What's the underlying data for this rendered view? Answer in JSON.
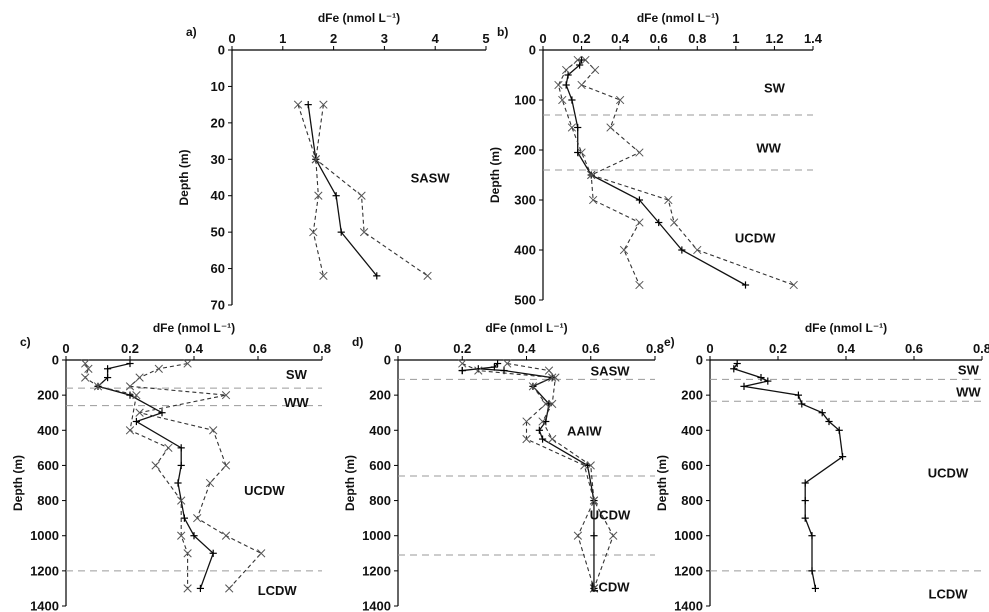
{
  "chart_data": [
    {
      "type": "line",
      "panel": "a)",
      "xlabel": "dFe (nmol L⁻¹)",
      "ylabel": "Depth (m)",
      "xlim": [
        0,
        5
      ],
      "ylim": [
        0,
        70
      ],
      "x_ticks": [
        "0",
        "1",
        "2",
        "3",
        "4",
        "5"
      ],
      "y_ticks": [
        "0",
        "10",
        "20",
        "30",
        "40",
        "50",
        "60",
        "70"
      ],
      "y_inverted": true,
      "series": [
        {
          "style": "mean",
          "x": [
            1.5,
            1.65,
            2.05,
            2.15,
            2.85
          ],
          "y": [
            15,
            30,
            40,
            50,
            62
          ]
        },
        {
          "style": "bound",
          "x": [
            1.3,
            1.65,
            2.55,
            2.6,
            3.85
          ],
          "y": [
            15,
            30,
            40,
            50,
            62
          ]
        },
        {
          "style": "bound",
          "x": [
            1.8,
            1.65,
            1.7,
            1.6,
            1.8
          ],
          "y": [
            15,
            30,
            40,
            50,
            62
          ]
        }
      ],
      "water_masses": [
        {
          "label": "SASW",
          "x": 3.9,
          "y": 35
        }
      ],
      "boundaries": []
    },
    {
      "type": "line",
      "panel": "b)",
      "xlabel": "dFe (nmol L⁻¹)",
      "ylabel": "Depth (m)",
      "xlim": [
        0,
        1.4
      ],
      "ylim": [
        0,
        500
      ],
      "x_ticks": [
        "0",
        "0.2",
        "0.4",
        "0.6",
        "0.8",
        "1",
        "1.2",
        "1.4"
      ],
      "y_ticks": [
        "0",
        "100",
        "200",
        "300",
        "400",
        "500"
      ],
      "y_inverted": true,
      "series": [
        {
          "style": "mean",
          "x": [
            0.2,
            0.19,
            0.13,
            0.12,
            0.15,
            0.18,
            0.18,
            0.25,
            0.5,
            0.6,
            0.72,
            1.05
          ],
          "y": [
            20,
            30,
            50,
            70,
            100,
            155,
            205,
            250,
            300,
            345,
            400,
            470
          ]
        },
        {
          "style": "bound",
          "x": [
            0.22,
            0.27,
            0.2,
            0.4,
            0.35,
            0.5,
            0.25,
            0.65,
            0.68,
            0.8,
            1.3
          ],
          "y": [
            20,
            40,
            70,
            100,
            155,
            205,
            250,
            300,
            345,
            400,
            470
          ]
        },
        {
          "style": "bound",
          "x": [
            0.18,
            0.12,
            0.08,
            0.1,
            0.15,
            0.2,
            0.25,
            0.26,
            0.5,
            0.42,
            0.5
          ],
          "y": [
            20,
            40,
            70,
            100,
            155,
            205,
            250,
            300,
            345,
            400,
            470
          ]
        }
      ],
      "water_masses": [
        {
          "label": "SW",
          "x": 1.2,
          "y": 75
        },
        {
          "label": "WW",
          "x": 1.17,
          "y": 195
        },
        {
          "label": "UCDW",
          "x": 1.1,
          "y": 375
        }
      ],
      "boundaries": [
        130,
        240
      ]
    },
    {
      "type": "line",
      "panel": "c)",
      "xlabel": "dFe (nmol L⁻¹)",
      "ylabel": "Depth (m)",
      "xlim": [
        0,
        0.8
      ],
      "ylim": [
        0,
        1400
      ],
      "x_ticks": [
        "0",
        "0.2",
        "0.4",
        "0.6",
        "0.8"
      ],
      "y_ticks": [
        "0",
        "200",
        "400",
        "600",
        "800",
        "1000",
        "1200",
        "1400"
      ],
      "y_inverted": true,
      "series": [
        {
          "style": "mean",
          "x": [
            0.2,
            0.13,
            0.13,
            0.1,
            0.2,
            0.3,
            0.22,
            0.36,
            0.36,
            0.35,
            0.37,
            0.4,
            0.46,
            0.42
          ],
          "y": [
            20,
            50,
            100,
            150,
            200,
            300,
            350,
            500,
            600,
            700,
            900,
            1000,
            1100,
            1300
          ]
        },
        {
          "style": "bound",
          "x": [
            0.38,
            0.29,
            0.23,
            0.2,
            0.5,
            0.23,
            0.46,
            0.5,
            0.45,
            0.41,
            0.5,
            0.61,
            0.51
          ],
          "y": [
            20,
            50,
            100,
            150,
            200,
            300,
            400,
            600,
            700,
            900,
            1000,
            1100,
            1300
          ]
        },
        {
          "style": "bound",
          "x": [
            0.06,
            0.07,
            0.06,
            0.1,
            0.22,
            0.2,
            0.32,
            0.28,
            0.36,
            0.36,
            0.38,
            0.38
          ],
          "y": [
            20,
            50,
            100,
            150,
            200,
            400,
            500,
            600,
            800,
            1000,
            1100,
            1300
          ]
        }
      ],
      "water_masses": [
        {
          "label": "SW",
          "x": 0.72,
          "y": 80
        },
        {
          "label": "WW",
          "x": 0.72,
          "y": 240
        },
        {
          "label": "UCDW",
          "x": 0.62,
          "y": 740
        },
        {
          "label": "LCDW",
          "x": 0.66,
          "y": 1310
        }
      ],
      "boundaries": [
        160,
        260,
        1200
      ]
    },
    {
      "type": "line",
      "panel": "d)",
      "xlabel": "dFe (nmol L⁻¹)",
      "ylabel": "Depth (m)",
      "xlim": [
        0,
        0.8
      ],
      "ylim": [
        0,
        1400
      ],
      "x_ticks": [
        "0",
        "0.2",
        "0.4",
        "0.6",
        "0.8"
      ],
      "y_ticks": [
        "0",
        "200",
        "400",
        "600",
        "800",
        "1000",
        "1200",
        "1400"
      ],
      "y_inverted": true,
      "series": [
        {
          "style": "mean",
          "x": [
            0.31,
            0.3,
            0.2,
            0.2,
            0.25,
            0.33,
            0.48,
            0.42,
            0.47,
            0.46,
            0.44,
            0.45,
            0.59,
            0.61,
            0.61,
            0.61
          ],
          "y": [
            20,
            40,
            60,
            60,
            50,
            60,
            100,
            150,
            250,
            350,
            400,
            450,
            600,
            800,
            1000,
            1300
          ]
        },
        {
          "style": "bound",
          "x": [
            0.34,
            0.47,
            0.49,
            0.48,
            0.45,
            0.48,
            0.6,
            0.61,
            0.67,
            0.61
          ],
          "y": [
            20,
            60,
            100,
            250,
            350,
            450,
            600,
            800,
            1000,
            1300
          ]
        },
        {
          "style": "bound",
          "x": [
            0.2,
            0.25,
            0.48,
            0.42,
            0.46,
            0.4,
            0.4,
            0.58,
            0.61,
            0.56,
            0.61
          ],
          "y": [
            20,
            60,
            100,
            150,
            250,
            350,
            450,
            600,
            800,
            1000,
            1300
          ]
        }
      ],
      "water_masses": [
        {
          "label": "SASW",
          "x": 0.66,
          "y": 60
        },
        {
          "label": "AAIW",
          "x": 0.58,
          "y": 400
        },
        {
          "label": "UCDW",
          "x": 0.66,
          "y": 880
        },
        {
          "label": "LCDW",
          "x": 0.66,
          "y": 1290
        }
      ],
      "boundaries": [
        110,
        660,
        1110
      ]
    },
    {
      "type": "line",
      "panel": "e)",
      "xlabel": "dFe (nmol L⁻¹)",
      "ylabel": "Depth (m)",
      "xlim": [
        0,
        0.8
      ],
      "ylim": [
        0,
        1400
      ],
      "x_ticks": [
        "0",
        "0.2",
        "0.4",
        "0.6",
        "0.8"
      ],
      "y_ticks": [
        "0",
        "200",
        "400",
        "600",
        "800",
        "1000",
        "1200",
        "1400"
      ],
      "y_inverted": true,
      "series": [
        {
          "style": "mean",
          "x": [
            0.08,
            0.07,
            0.15,
            0.17,
            0.1,
            0.26,
            0.27,
            0.33,
            0.35,
            0.38,
            0.39,
            0.28,
            0.28,
            0.28,
            0.3,
            0.3,
            0.31
          ],
          "y": [
            20,
            50,
            100,
            120,
            150,
            200,
            250,
            300,
            350,
            400,
            550,
            700,
            800,
            900,
            1000,
            1200,
            1300
          ]
        }
      ],
      "water_masses": [
        {
          "label": "SW",
          "x": 0.76,
          "y": 55
        },
        {
          "label": "WW",
          "x": 0.76,
          "y": 180
        },
        {
          "label": "UCDW",
          "x": 0.7,
          "y": 640
        },
        {
          "label": "LCDW",
          "x": 0.7,
          "y": 1330
        }
      ],
      "boundaries": [
        110,
        235,
        1200
      ]
    }
  ]
}
